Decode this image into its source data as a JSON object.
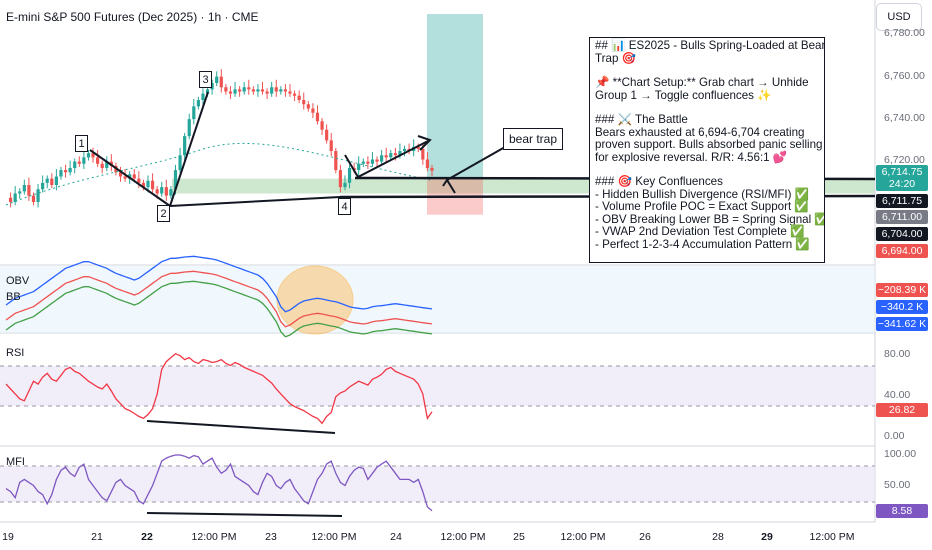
{
  "header": {
    "title": "E-mini S&P 500 Futures (Dec 2025) · 1h · CME",
    "currency": "USD"
  },
  "note": {
    "lines": [
      "## 📊 ES2025 - Bulls Spring-Loaded at Bear",
      "Trap 🎯",
      "",
      "📌 **Chart Setup:** Grab chart → Unhide",
      "Group 1 → Toggle confluences ✨",
      "",
      "### ⚔️ The Battle",
      "Bears exhausted at 6,694-6,704 creating",
      "proven support. Bulls absorbed panic selling",
      "for explosive reversal. R/R: 4.56:1 💕",
      "",
      "### 🎯 Key Confluences",
      "- Hidden Bullish Divergence (RSI/MFI) ✅",
      "- Volume Profile POC = Exact Support ✅",
      "- OBV Breaking Lower BB = Spring Signal ✅",
      "- VWAP 2nd Deviation Test Complete ✅",
      "- Perfect 1-2-3-4 Accumulation Pattern ✅"
    ]
  },
  "callout": "bear trap",
  "wave_labels": [
    "1",
    "2",
    "3",
    "4"
  ],
  "panes": {
    "obv_label": "OBV",
    "bb_label": "BB",
    "rsi_label": "RSI",
    "mfi_label": "MFI"
  },
  "price_axis": {
    "ticks": [
      "6,780.00",
      "6,760.00",
      "6,740.00",
      "6,720.00"
    ],
    "tags": [
      {
        "value": "6,714.75",
        "sub": "24:20",
        "color": "#26a69a"
      },
      {
        "value": "6,711.75",
        "color": "#131722"
      },
      {
        "value": "6,711.00",
        "color": "#787b86"
      },
      {
        "value": "6,704.00",
        "color": "#131722"
      },
      {
        "value": "6,694.00",
        "color": "#ef5350"
      }
    ]
  },
  "obv_axis": {
    "tags": [
      {
        "value": "−208.39 K",
        "color": "#ef5350"
      },
      {
        "value": "−340.2 K",
        "color": "#2962ff"
      },
      {
        "value": "−341.62 K",
        "color": "#2962ff"
      }
    ]
  },
  "rsi_axis": {
    "ticks": [
      "80.00",
      "40.00",
      "0.00"
    ],
    "tag": {
      "value": "26.82",
      "color": "#ef5350"
    }
  },
  "mfi_axis": {
    "ticks": [
      "100.00",
      "50.00"
    ],
    "tag": {
      "value": "8.58",
      "color": "#7e57c2"
    }
  },
  "time_axis": [
    {
      "label": "19",
      "bold": false
    },
    {
      "label": "21",
      "bold": false
    },
    {
      "label": "22",
      "bold": true
    },
    {
      "label": "12:00 PM",
      "bold": false
    },
    {
      "label": "23",
      "bold": false
    },
    {
      "label": "12:00 PM",
      "bold": false
    },
    {
      "label": "24",
      "bold": false
    },
    {
      "label": "12:00 PM",
      "bold": false
    },
    {
      "label": "25",
      "bold": false
    },
    {
      "label": "12:00 PM",
      "bold": false
    },
    {
      "label": "26",
      "bold": false
    },
    {
      "label": "28",
      "bold": false
    },
    {
      "label": "29",
      "bold": true
    },
    {
      "label": "12:00 PM",
      "bold": false
    }
  ],
  "colors": {
    "up": "#26a69a",
    "down": "#ef5350",
    "rsi": "#f23645",
    "mfi": "#7e57c2",
    "obv": "#2962ff",
    "bb_lower": "#43a047"
  },
  "chart_data": {
    "type": "candlestick",
    "title": "E-mini S&P 500 Futures (Dec 2025) · 1h · CME",
    "ylim": [
      6684,
      6790
    ],
    "support_zone": [
      6704,
      6711
    ],
    "trade": {
      "entry": 6711.75,
      "stop": 6694.0,
      "target": 6790.0
    },
    "price_path": [
      6702,
      6700,
      6704,
      6705,
      6708,
      6703,
      6700,
      6706,
      6709,
      6711,
      6708,
      6712,
      6715,
      6714,
      6716,
      6719,
      6718,
      6721,
      6723,
      6721,
      6718,
      6716,
      6719,
      6717,
      6714,
      6712,
      6711,
      6713,
      6711,
      6709,
      6707,
      6710,
      6706,
      6704,
      6707,
      6703,
      6706,
      6715,
      6722,
      6731,
      6739,
      6745,
      6748,
      6751,
      6753,
      6756,
      6759,
      6754,
      6752,
      6751,
      6753,
      6752,
      6754,
      6753,
      6752,
      6753,
      6752,
      6751,
      6754,
      6752,
      6753,
      6752,
      6751,
      6750,
      6748,
      6746,
      6744,
      6742,
      6738,
      6734,
      6729,
      6724,
      6715,
      6707,
      6709,
      6716,
      6715,
      6718,
      6719,
      6718,
      6720,
      6719,
      6722,
      6721,
      6723,
      6722,
      6724,
      6725,
      6724,
      6726,
      6725,
      6720,
      6716,
      6714.75
    ],
    "rsi": [
      55,
      50,
      45,
      40,
      38,
      48,
      58,
      55,
      62,
      66,
      60,
      58,
      64,
      70,
      72,
      68,
      66,
      62,
      58,
      55,
      52,
      50,
      55,
      48,
      40,
      35,
      30,
      28,
      25,
      22,
      20,
      24,
      30,
      45,
      70,
      78,
      82,
      86,
      84,
      80,
      82,
      78,
      76,
      80,
      79,
      77,
      78,
      80,
      76,
      74,
      77,
      75,
      72,
      70,
      68,
      66,
      64,
      60,
      56,
      50,
      45,
      40,
      35,
      32,
      30,
      28,
      25,
      22,
      20,
      15,
      22,
      26,
      42,
      46,
      48,
      52,
      55,
      58,
      56,
      54,
      60,
      62,
      65,
      70,
      72,
      68,
      66,
      64,
      62,
      60,
      55,
      45,
      20,
      26.82
    ],
    "mfi": [
      45,
      40,
      30,
      55,
      60,
      55,
      50,
      40,
      35,
      20,
      35,
      60,
      75,
      80,
      70,
      65,
      80,
      85,
      60,
      50,
      40,
      30,
      25,
      40,
      55,
      60,
      50,
      45,
      40,
      25,
      20,
      35,
      50,
      70,
      90,
      95,
      98,
      100,
      100,
      98,
      95,
      99,
      97,
      85,
      90,
      95,
      80,
      70,
      75,
      85,
      65,
      60,
      55,
      50,
      40,
      35,
      55,
      70,
      65,
      50,
      45,
      55,
      60,
      45,
      35,
      25,
      20,
      40,
      60,
      70,
      85,
      90,
      70,
      55,
      50,
      65,
      75,
      80,
      78,
      60,
      70,
      80,
      85,
      90,
      80,
      70,
      60,
      60,
      60,
      55,
      60,
      40,
      15,
      8.58
    ],
    "obv": [
      -330,
      -320,
      -310,
      -305,
      -300,
      -295,
      -290,
      -280,
      -270,
      -260,
      -250,
      -240,
      -230,
      -220,
      -215,
      -210,
      -205,
      -200,
      -200,
      -205,
      -210,
      -215,
      -220,
      -228,
      -235,
      -240,
      -245,
      -250,
      -255,
      -250,
      -240,
      -230,
      -220,
      -210,
      -200,
      -195,
      -190,
      -190,
      -188,
      -186,
      -185,
      -184,
      -186,
      -188,
      -190,
      -192,
      -195,
      -200,
      -205,
      -210,
      -215,
      -220,
      -225,
      -230,
      -235,
      -240,
      -250,
      -265,
      -285,
      -305,
      -335,
      -350,
      -345,
      -335,
      -325,
      -318,
      -315,
      -312,
      -310,
      -312,
      -315,
      -318,
      -320,
      -325,
      -330,
      -335,
      -338,
      -340,
      -342,
      -340,
      -335,
      -333,
      -332,
      -330,
      -328,
      -326,
      -328,
      -330,
      -332,
      -334,
      -336,
      -338,
      -340,
      -341.62
    ]
  }
}
